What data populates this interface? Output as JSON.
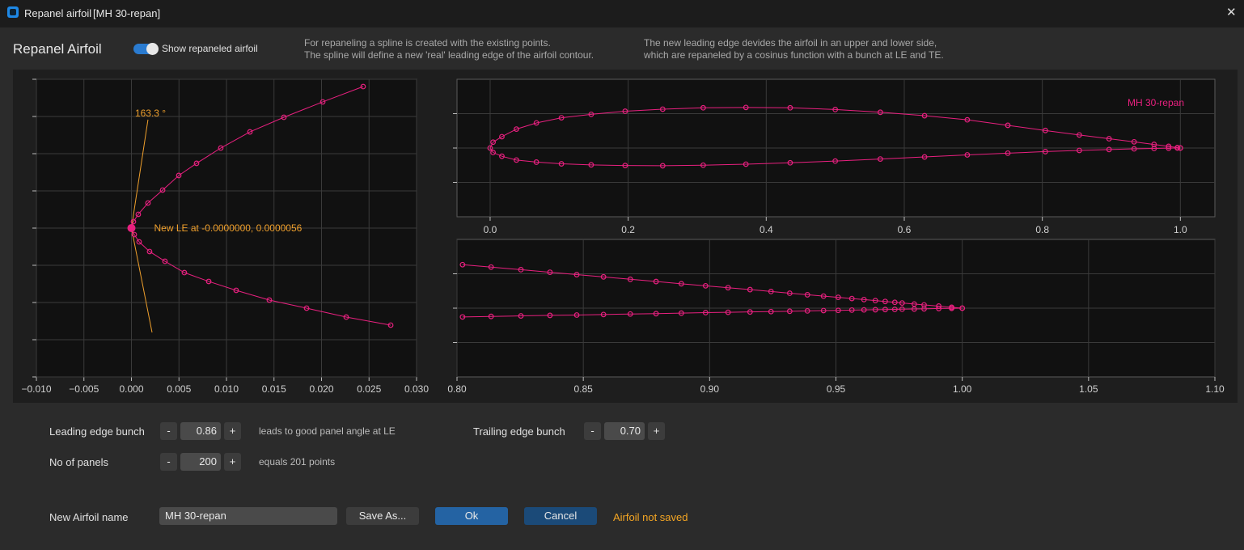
{
  "window": {
    "title": "Repanel airfoil",
    "subtitle": "[MH 30-repan]"
  },
  "header": {
    "title": "Repanel Airfoil",
    "toggle_label": "Show repaneled airfoil",
    "info_left": [
      "For repaneling a spline is created with the existing points.",
      "The spline will define a new 'real' leading edge of the airfoil contour."
    ],
    "info_right": [
      "The new leading edge devides the airfoil in an upper and lower side,",
      "which are repaneled by a cosinus function with a bunch at LE and TE."
    ]
  },
  "controls": {
    "le_bunch": {
      "label": "Leading edge bunch",
      "minus": "-",
      "value": "0.86",
      "plus": "+",
      "note": "leads to good panel angle at LE"
    },
    "te_bunch": {
      "label": "Trailing edge bunch",
      "minus": "-",
      "value": "0.70",
      "plus": "+"
    },
    "panels": {
      "label": "No of panels",
      "minus": "-",
      "value": "200",
      "plus": "+",
      "note": "equals 201 points"
    },
    "name": {
      "label": "New Airfoil name",
      "value": "MH 30-repan"
    },
    "save_as": "Save As...",
    "ok": "Ok",
    "cancel": "Cancel",
    "status": "Airfoil not saved"
  },
  "chart_data": [
    {
      "type": "line",
      "grid": true,
      "marker": "circle",
      "xlim": [
        -0.01,
        0.03
      ],
      "xticks": [
        {
          "value": -0.01,
          "label": "−0.010"
        },
        {
          "value": -0.005,
          "label": "−0.005"
        },
        {
          "value": 0,
          "label": "0.000"
        },
        0.005,
        {
          "value": 0.01,
          "label": "0.010"
        },
        0.015,
        {
          "value": 0.02,
          "label": "0.020"
        },
        0.025,
        {
          "value": 0.03,
          "label": "0.030"
        }
      ],
      "ylim": [
        -0.02,
        0.02
      ],
      "yticks": [
        -0.02,
        -0.015,
        -0.01,
        -0.005,
        0,
        0.005,
        0.01,
        0.015,
        0.02
      ],
      "series": [
        {
          "color": "#e8207f",
          "x": [
            0.02438,
            0.02013,
            0.01604,
            0.01247,
            0.0094,
            0.00685,
            0.00498,
            0.00328,
            0.00174,
            0.00072,
            0.00021,
            0,
            0.0003,
            0.00081,
            0.00191,
            0.00353,
            0.00557,
            0.00813,
            0.01102,
            0.01451,
            0.01843,
            0.0226,
            0.02728
          ],
          "values": [
            0.01902,
            0.01696,
            0.01489,
            0.01293,
            0.01076,
            0.0087,
            0.00707,
            0.00511,
            0.00337,
            0.00185,
            0.00087,
            5.6e-06,
            -0.00087,
            -0.00185,
            -0.00315,
            -0.00446,
            -0.00598,
            -0.00717,
            -0.00837,
            -0.00967,
            -0.01076,
            -0.01196,
            -0.01304
          ]
        }
      ],
      "le_point": {
        "x": 0,
        "y": 5.6e-06,
        "color": "#e8207f"
      },
      "le_label": "New LE at -0.0000000, 0.0000056",
      "angle_line": {
        "color": "#f0a02c",
        "x": [
          0.00174,
          0,
          0.00217
        ],
        "y": [
          0.01457,
          0,
          -0.01402
        ]
      },
      "angle_label": "163.3 °"
    },
    {
      "type": "line",
      "grid": true,
      "marker": "circle",
      "legend": "upper right",
      "xlim": [
        -0.048,
        1.05
      ],
      "xticks": [
        {
          "value": 0,
          "label": "0.0"
        },
        0.2,
        0.4,
        0.6,
        0.8,
        {
          "value": 1,
          "label": "1.0"
        }
      ],
      "ylim": [
        -0.1,
        0.1
      ],
      "yticks": [
        -0.05,
        0,
        0.05
      ],
      "series": [
        {
          "name": "MH 30-repan",
          "color": "#e8207f",
          "x": [
            1,
            0.9957,
            0.983,
            0.9619,
            0.933,
            0.8967,
            0.8536,
            0.8044,
            0.75,
            0.6913,
            0.6294,
            0.5653,
            0.5,
            0.4347,
            0.3706,
            0.3087,
            0.25,
            0.1956,
            0.1464,
            0.1033,
            0.067,
            0.0381,
            0.017,
            0.0043,
            0,
            0.0043,
            0.017,
            0.0381,
            0.067,
            0.1033,
            0.1464,
            0.1956,
            0.25,
            0.3087,
            0.3706,
            0.4347,
            0.5,
            0.5653,
            0.6294,
            0.6913,
            0.75,
            0.8044,
            0.8536,
            0.8967,
            0.933,
            0.9619,
            0.983,
            0.9957,
            1
          ],
          "values": [
            0,
            0.0006,
            0.0024,
            0.0052,
            0.009,
            0.0135,
            0.019,
            0.0255,
            0.033,
            0.041,
            0.047,
            0.052,
            0.056,
            0.0585,
            0.059,
            0.0585,
            0.0565,
            0.0535,
            0.049,
            0.044,
            0.0365,
            0.0275,
            0.0165,
            0.0085,
            0,
            -0.0065,
            -0.012,
            -0.0175,
            -0.0205,
            -0.023,
            -0.0245,
            -0.0255,
            -0.0258,
            -0.025,
            -0.0235,
            -0.0215,
            -0.019,
            -0.016,
            -0.013,
            -0.01,
            -0.0075,
            -0.0052,
            -0.0035,
            -0.0022,
            -0.0012,
            -0.0006,
            -0.0002,
            0,
            0
          ]
        }
      ]
    },
    {
      "type": "line",
      "grid": true,
      "marker": "circle",
      "xlim": [
        0.8,
        1.1
      ],
      "xticks": [
        {
          "value": 0.8,
          "label": "0.80"
        },
        0.85,
        {
          "value": 0.9,
          "label": "0.90"
        },
        0.95,
        {
          "value": 1,
          "label": "1.00"
        },
        1.05,
        {
          "value": 1.1,
          "label": "1.10"
        }
      ],
      "ylim": [
        -0.04,
        0.04
      ],
      "yticks": [
        -0.02,
        0,
        0.02
      ],
      "series": [
        {
          "color": "#e8207f",
          "x": [
            0.8022,
            0.8135,
            0.8253,
            0.8368,
            0.8474,
            0.858,
            0.8686,
            0.8788,
            0.8888,
            0.8984,
            0.9073,
            0.916,
            0.9243,
            0.9317,
            0.9387,
            0.9451,
            0.9509,
            0.9563,
            0.9611,
            0.9656,
            0.9695,
            0.9733,
            0.9762,
            0.981,
            0.9849,
            0.9907,
            0.9958,
            1
          ],
          "values": [
            0.0253,
            0.0239,
            0.0224,
            0.0209,
            0.0195,
            0.0182,
            0.0168,
            0.0155,
            0.0142,
            0.013,
            0.0119,
            0.0108,
            0.0097,
            0.0087,
            0.0078,
            0.007,
            0.0063,
            0.0056,
            0.005,
            0.0044,
            0.0039,
            0.0034,
            0.003,
            0.0024,
            0.0019,
            0.0012,
            0.0005,
            0
          ]
        },
        {
          "color": "#e8207f",
          "x": [
            0.8022,
            0.8135,
            0.8253,
            0.8368,
            0.8474,
            0.858,
            0.8686,
            0.8788,
            0.8888,
            0.8984,
            0.9073,
            0.916,
            0.9243,
            0.9317,
            0.9387,
            0.9451,
            0.9509,
            0.9563,
            0.9611,
            0.9656,
            0.9695,
            0.9733,
            0.9762,
            0.981,
            0.9849,
            0.9907,
            0.9958,
            1
          ],
          "values": [
            -0.0051,
            -0.0048,
            -0.0045,
            -0.0042,
            -0.004,
            -0.0037,
            -0.0034,
            -0.0032,
            -0.0029,
            -0.0026,
            -0.0024,
            -0.0022,
            -0.002,
            -0.0018,
            -0.0016,
            -0.0014,
            -0.0013,
            -0.0011,
            -0.001,
            -0.0009,
            -0.0008,
            -0.0007,
            -0.0006,
            -0.0005,
            -0.0004,
            -0.0002,
            -0.0001,
            0
          ]
        }
      ]
    }
  ]
}
